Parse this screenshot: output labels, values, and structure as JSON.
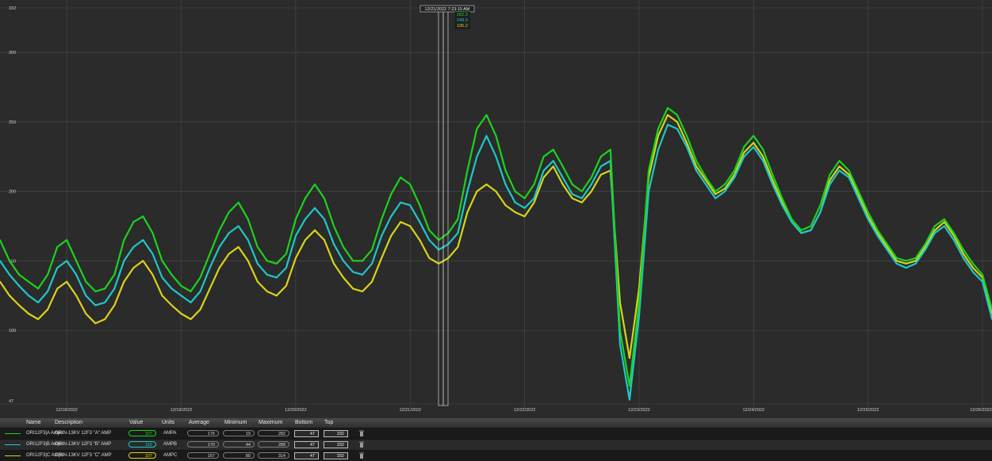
{
  "cursor": {
    "timestamp": "12/21/2022 7:23:15 AM",
    "readings": [
      "282.3",
      "248.9",
      "195.2"
    ]
  },
  "chart_data": {
    "type": "line",
    "ylim": [
      47,
      332
    ],
    "y_ticks": [
      "47",
      "100",
      "150",
      "200",
      "250",
      "300",
      "332"
    ],
    "x_ticks": [
      "12/18/2022",
      "12/19/2022",
      "12/20/2022",
      "12/21/2022",
      "12/22/2022",
      "12/23/2022",
      "12/24/2022",
      "12/25/2022",
      "12/26/2022"
    ],
    "xlim": [
      "12/17/2022 10:00",
      "12/26/2022 02:00"
    ],
    "grid": true,
    "x": [
      "12/17 10:00",
      "12/17 12:00",
      "12/17 14:00",
      "12/17 16:00",
      "12/17 18:00",
      "12/17 20:00",
      "12/17 22:00",
      "12/18 00:00",
      "12/18 02:00",
      "12/18 04:00",
      "12/18 06:00",
      "12/18 08:00",
      "12/18 10:00",
      "12/18 12:00",
      "12/18 14:00",
      "12/18 16:00",
      "12/18 18:00",
      "12/18 20:00",
      "12/18 22:00",
      "12/19 00:00",
      "12/19 02:00",
      "12/19 04:00",
      "12/19 06:00",
      "12/19 08:00",
      "12/19 10:00",
      "12/19 12:00",
      "12/19 14:00",
      "12/19 16:00",
      "12/19 18:00",
      "12/19 20:00",
      "12/19 22:00",
      "12/20 00:00",
      "12/20 02:00",
      "12/20 04:00",
      "12/20 06:00",
      "12/20 08:00",
      "12/20 10:00",
      "12/20 12:00",
      "12/20 14:00",
      "12/20 16:00",
      "12/20 18:00",
      "12/20 20:00",
      "12/20 22:00",
      "12/21 00:00",
      "12/21 02:00",
      "12/21 04:00",
      "12/21 06:00",
      "12/21 08:00",
      "12/21 10:00",
      "12/21 12:00",
      "12/21 14:00",
      "12/21 16:00",
      "12/21 18:00",
      "12/21 20:00",
      "12/21 22:00",
      "12/22 00:00",
      "12/22 02:00",
      "12/22 04:00",
      "12/22 06:00",
      "12/22 08:00",
      "12/22 10:00",
      "12/22 12:00",
      "12/22 14:00",
      "12/22 16:00",
      "12/22 18:00",
      "12/22 20:00",
      "12/22 22:00",
      "12/23 00:00",
      "12/23 02:00",
      "12/23 04:00",
      "12/23 06:00",
      "12/23 08:00",
      "12/23 10:00",
      "12/23 12:00",
      "12/23 14:00",
      "12/23 16:00",
      "12/23 18:00",
      "12/23 20:00",
      "12/23 22:00",
      "12/24 00:00",
      "12/24 02:00",
      "12/24 04:00",
      "12/24 06:00",
      "12/24 08:00",
      "12/24 10:00",
      "12/24 12:00",
      "12/24 14:00",
      "12/24 16:00",
      "12/24 18:00",
      "12/24 20:00",
      "12/24 22:00",
      "12/25 00:00",
      "12/25 02:00",
      "12/25 04:00",
      "12/25 06:00",
      "12/25 08:00",
      "12/25 10:00",
      "12/25 12:00",
      "12/25 14:00",
      "12/25 16:00",
      "12/25 18:00",
      "12/25 20:00",
      "12/25 22:00",
      "12/26 00:00",
      "12/26 02:00"
    ],
    "series": [
      {
        "name": "ORI12F3|A Amps",
        "color": "#1ed21e",
        "values": [
          165,
          150,
          140,
          135,
          130,
          140,
          160,
          165,
          150,
          135,
          128,
          130,
          140,
          165,
          178,
          182,
          170,
          150,
          140,
          132,
          128,
          138,
          155,
          172,
          185,
          192,
          180,
          160,
          150,
          148,
          155,
          180,
          195,
          205,
          195,
          175,
          160,
          150,
          150,
          158,
          180,
          198,
          210,
          205,
          190,
          172,
          165,
          170,
          180,
          215,
          245,
          255,
          240,
          215,
          200,
          195,
          205,
          225,
          230,
          218,
          205,
          200,
          210,
          225,
          230,
          100,
          60,
          120,
          215,
          245,
          260,
          255,
          240,
          222,
          210,
          200,
          205,
          215,
          232,
          240,
          230,
          212,
          195,
          180,
          172,
          175,
          190,
          212,
          222,
          215,
          200,
          185,
          172,
          162,
          152,
          150,
          152,
          162,
          175,
          180,
          170,
          158,
          148,
          140,
          115
        ]
      },
      {
        "name": "ORI12F3|B Amps",
        "color": "#1ec8c8",
        "values": [
          150,
          140,
          132,
          125,
          120,
          128,
          145,
          150,
          140,
          125,
          118,
          120,
          130,
          150,
          160,
          165,
          155,
          138,
          130,
          125,
          120,
          128,
          145,
          160,
          170,
          175,
          165,
          148,
          140,
          138,
          145,
          168,
          180,
          188,
          180,
          162,
          150,
          142,
          140,
          148,
          168,
          182,
          192,
          190,
          178,
          165,
          158,
          162,
          170,
          200,
          225,
          240,
          225,
          205,
          192,
          188,
          195,
          215,
          222,
          210,
          198,
          195,
          205,
          218,
          222,
          90,
          50,
          110,
          200,
          230,
          248,
          245,
          232,
          215,
          205,
          195,
          200,
          210,
          225,
          232,
          222,
          205,
          190,
          178,
          170,
          172,
          185,
          205,
          215,
          210,
          195,
          180,
          168,
          158,
          148,
          145,
          148,
          158,
          170,
          175,
          165,
          152,
          142,
          135,
          108
        ]
      },
      {
        "name": "ORI12F3|C Amps",
        "color": "#d8d418",
        "values": [
          135,
          125,
          118,
          112,
          108,
          115,
          130,
          135,
          125,
          112,
          105,
          108,
          118,
          135,
          145,
          150,
          140,
          125,
          118,
          112,
          108,
          115,
          130,
          145,
          155,
          160,
          150,
          135,
          128,
          125,
          132,
          152,
          165,
          172,
          165,
          148,
          138,
          130,
          128,
          135,
          152,
          168,
          178,
          175,
          165,
          152,
          148,
          152,
          160,
          185,
          200,
          205,
          200,
          190,
          185,
          182,
          192,
          210,
          218,
          205,
          195,
          192,
          200,
          212,
          215,
          120,
          80,
          130,
          210,
          240,
          255,
          250,
          235,
          218,
          208,
          198,
          202,
          212,
          228,
          235,
          225,
          208,
          192,
          178,
          170,
          172,
          185,
          208,
          218,
          212,
          198,
          182,
          170,
          160,
          150,
          148,
          150,
          160,
          172,
          178,
          168,
          155,
          145,
          138,
          112
        ]
      }
    ]
  },
  "legend": {
    "headers": {
      "name": "Name",
      "description": "Description",
      "value": "Value",
      "units": "Units",
      "average": "Average",
      "minimum": "Minimum",
      "maximum": "Maximum",
      "bottom": "Bottom",
      "top": "Top"
    },
    "rows": [
      {
        "name": "ORI12F3|A Amps",
        "description": "ORIN-13KV 12F3 \"A\" AMP",
        "value": "107",
        "units": "AMPA",
        "average": "176",
        "minimum": "19",
        "maximum": "282",
        "bottom": "47",
        "top": "332",
        "color": "#1ed21e"
      },
      {
        "name": "ORI12F3|B Amps",
        "description": "ORIN-13KV 12F3 \"B\" AMP",
        "value": "115",
        "units": "AMPB",
        "average": "170",
        "minimum": "44",
        "maximum": "289",
        "bottom": "47",
        "top": "332",
        "color": "#1ec8c8"
      },
      {
        "name": "ORI12F3|C Amps",
        "description": "ORIN-13KV 12F3 \"C\" AMP",
        "value": "107",
        "units": "AMPC",
        "average": "167",
        "minimum": "80",
        "maximum": "314",
        "bottom": "47",
        "top": "332",
        "color": "#d8d418"
      }
    ]
  }
}
